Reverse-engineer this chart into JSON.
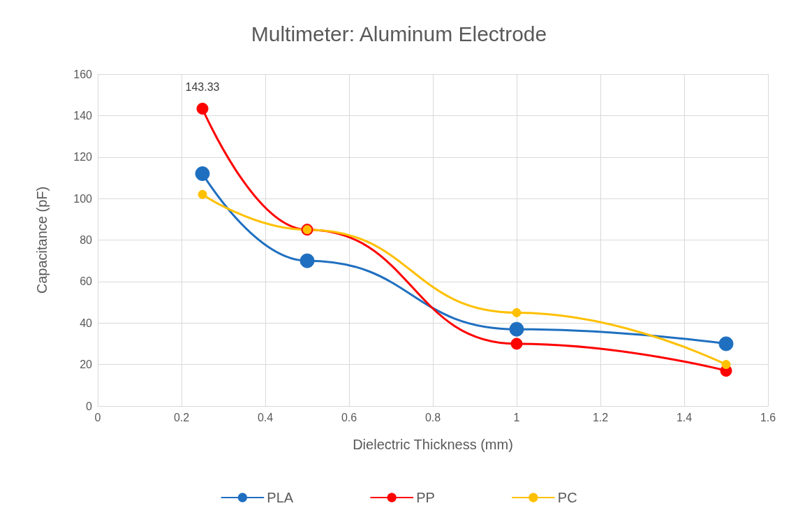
{
  "chart_data": {
    "type": "line",
    "title": "Multimeter: Aluminum Electrode",
    "xlabel": "Dielectric Thickness (mm)",
    "ylabel": "Capacitance (pF)",
    "x": [
      0.25,
      0.5,
      1,
      1.5
    ],
    "series": [
      {
        "name": "PLA",
        "color": "#1f6fc0",
        "values": [
          112,
          70,
          37,
          30
        ]
      },
      {
        "name": "PP",
        "color": "#ff0000",
        "values": [
          143.33,
          85,
          30,
          17
        ],
        "value_labels": [
          "143.33",
          null,
          null,
          null
        ]
      },
      {
        "name": "PC",
        "color": "#ffc000",
        "values": [
          102,
          85,
          45,
          20
        ]
      }
    ],
    "xlim": [
      0,
      1.6
    ],
    "xticks": [
      0,
      0.2,
      0.4,
      0.6,
      0.8,
      1,
      1.2,
      1.4,
      1.6
    ],
    "ylim": [
      0,
      160
    ],
    "yticks": [
      0,
      20,
      40,
      60,
      80,
      100,
      120,
      140,
      160
    ],
    "grid": true,
    "legend": "bottom",
    "marker": "circle",
    "line_style": "solid"
  }
}
